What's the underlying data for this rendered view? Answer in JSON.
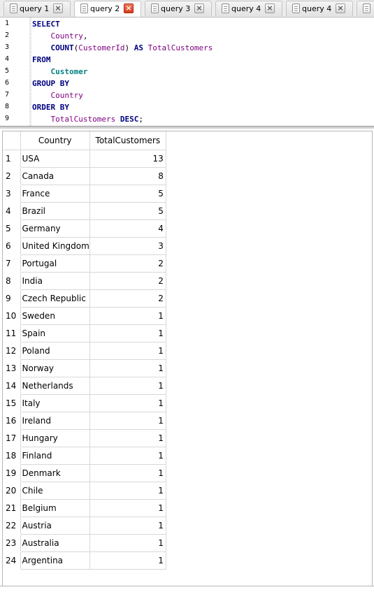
{
  "tabs": [
    {
      "label": "query 1",
      "active": false
    },
    {
      "label": "query 2",
      "active": true
    },
    {
      "label": "query 3",
      "active": false
    },
    {
      "label": "query 4",
      "active": false
    },
    {
      "label": "query 4",
      "active": false
    }
  ],
  "editor": {
    "line_numbers": [
      "1",
      "2",
      "3",
      "4",
      "5",
      "6",
      "7",
      "8",
      "9"
    ],
    "lines": [
      [
        {
          "t": "SELECT",
          "c": "kw"
        }
      ],
      [
        {
          "t": "    ",
          "c": "pl"
        },
        {
          "t": "Country",
          "c": "id"
        },
        {
          "t": ",",
          "c": "pl"
        }
      ],
      [
        {
          "t": "    ",
          "c": "pl"
        },
        {
          "t": "COUNT",
          "c": "kw"
        },
        {
          "t": "(",
          "c": "pl"
        },
        {
          "t": "CustomerId",
          "c": "id"
        },
        {
          "t": ") ",
          "c": "pl"
        },
        {
          "t": "AS",
          "c": "kw"
        },
        {
          "t": " ",
          "c": "pl"
        },
        {
          "t": "TotalCustomers",
          "c": "id"
        }
      ],
      [
        {
          "t": "FROM",
          "c": "kw"
        }
      ],
      [
        {
          "t": "    ",
          "c": "pl"
        },
        {
          "t": "Customer",
          "c": "tbl"
        }
      ],
      [
        {
          "t": "GROUP BY",
          "c": "kw"
        }
      ],
      [
        {
          "t": "    ",
          "c": "pl"
        },
        {
          "t": "Country",
          "c": "id"
        }
      ],
      [
        {
          "t": "ORDER BY",
          "c": "kw"
        }
      ],
      [
        {
          "t": "    ",
          "c": "pl"
        },
        {
          "t": "TotalCustomers",
          "c": "id"
        },
        {
          "t": " ",
          "c": "pl"
        },
        {
          "t": "DESC",
          "c": "kw"
        },
        {
          "t": ";",
          "c": "pl"
        }
      ]
    ]
  },
  "results": {
    "columns": [
      "Country",
      "TotalCustomers"
    ],
    "rows": [
      [
        "USA",
        "13"
      ],
      [
        "Canada",
        "8"
      ],
      [
        "France",
        "5"
      ],
      [
        "Brazil",
        "5"
      ],
      [
        "Germany",
        "4"
      ],
      [
        "United Kingdom",
        "3"
      ],
      [
        "Portugal",
        "2"
      ],
      [
        "India",
        "2"
      ],
      [
        "Czech Republic",
        "2"
      ],
      [
        "Sweden",
        "1"
      ],
      [
        "Spain",
        "1"
      ],
      [
        "Poland",
        "1"
      ],
      [
        "Norway",
        "1"
      ],
      [
        "Netherlands",
        "1"
      ],
      [
        "Italy",
        "1"
      ],
      [
        "Ireland",
        "1"
      ],
      [
        "Hungary",
        "1"
      ],
      [
        "Finland",
        "1"
      ],
      [
        "Denmark",
        "1"
      ],
      [
        "Chile",
        "1"
      ],
      [
        "Belgium",
        "1"
      ],
      [
        "Austria",
        "1"
      ],
      [
        "Australia",
        "1"
      ],
      [
        "Argentina",
        "1"
      ]
    ]
  },
  "colors": {
    "keyword": "#000080",
    "identifier": "#800080",
    "table": "#008080",
    "close_active": "#d83a1c"
  }
}
